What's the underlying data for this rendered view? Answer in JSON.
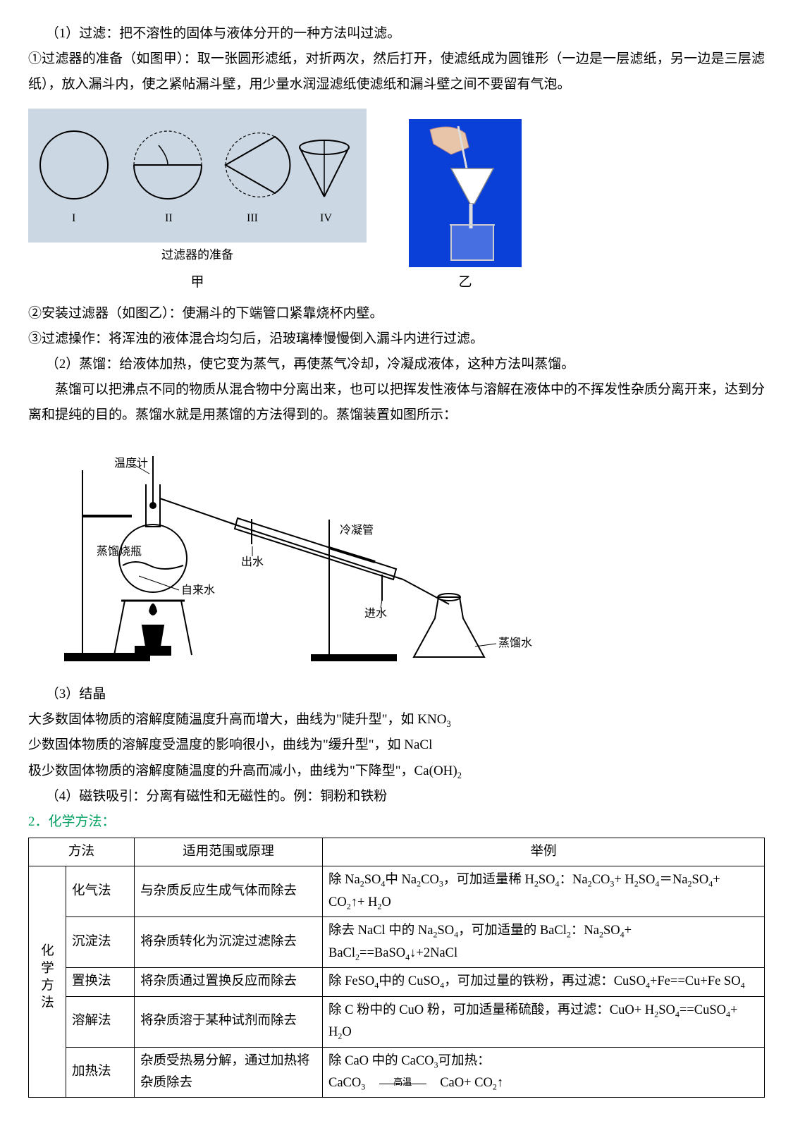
{
  "p1": "（1）过滤：把不溶性的固体与液体分开的一种方法叫过滤。",
  "p2": "①过滤器的准备（如图甲）：取一张圆形滤纸，对折两次，然后打开，使滤纸成为圆锥形（一边是一层滤纸，另一边是三层滤纸），放入漏斗内，使之紧帖漏斗壁，用少量水润湿滤纸使滤纸和漏斗壁之间不要留有气泡。",
  "fig": {
    "labels": [
      "I",
      "II",
      "III",
      "IV"
    ],
    "prep_caption": "过滤器的准备",
    "cap_a": "甲",
    "cap_b": "乙",
    "stroke": "#000000",
    "bg_a": "#cbd7e3",
    "bg_b": "#0a3fd8"
  },
  "p3": "②安装过滤器（如图乙）：使漏斗的下端管口紧靠烧杯内壁。",
  "p4": "③过滤操作：将浑浊的液体混合均匀后，沿玻璃棒慢慢倒入漏斗内进行过滤。",
  "p5": "（2）蒸馏：给液体加热，使它变为蒸气，再使蒸气冷却，冷凝成液体，这种方法叫蒸馏。",
  "p6": "蒸馏可以把沸点不同的物质从混合物中分离出来，也可以把挥发性液体与溶解在液体中的不挥发性杂质分离开来，达到分离和提纯的目的。蒸馏水就是用蒸馏的方法得到的。蒸馏装置如图所示：",
  "distill": {
    "thermo": "温度计",
    "flask": "蒸馏烧瓶",
    "tap": "自来水",
    "out": "出水",
    "cond": "冷凝管",
    "in": "进水",
    "product": "蒸馏水"
  },
  "p7": "（3）结晶",
  "p8_a": "大多数固体物质的溶解度随温度升高而增大，曲线为\"陡升型\"，如 KNO",
  "p8_b": "3",
  "p9": "少数固体物质的溶解度受温度的影响很小，曲线为\"缓升型\"，如 NaCl",
  "p10_a": "极少数固体物质的溶解度随温度的升高而减小，曲线为\"下降型\"，Ca(OH)",
  "p10_b": "2",
  "p11": "（4）磁铁吸引：分离有磁性和无磁性的。例：铜粉和铁粉",
  "sec2": "2．化学方法：",
  "table": {
    "h1": "方法",
    "h2": "适用范围或原理",
    "h3": "举例",
    "group": "化学方法",
    "rows": [
      {
        "name": "化气法",
        "scope": "与杂质反应生成气体而除去",
        "ex_html": "除 Na<span class='sub'>2</span>SO<span class='sub'>4</span>中 Na<span class='sub'>2</span>CO<span class='sub'>3</span>，可加适量稀 H<span class='sub'>2</span>SO<span class='sub'>4</span>：Na<span class='sub'>2</span>CO<span class='sub'>3</span>+ H<span class='sub'>2</span>SO<span class='sub'>4</span>＝Na<span class='sub'>2</span>SO<span class='sub'>4</span>+ CO<span class='sub'>2</span>↑+ H<span class='sub'>2</span>O"
      },
      {
        "name": "沉淀法",
        "scope": "将杂质转化为沉淀过滤除去",
        "ex_html": "除去 NaCl 中的 Na<span class='sub'>2</span>SO<span class='sub'>4</span>，可加适量的 BaCl<span class='sub'>2</span>：Na<span class='sub'>2</span>SO<span class='sub'>4</span>+ BaCl<span class='sub'>2</span>==BaSO<span class='sub'>4</span>↓+2NaCl"
      },
      {
        "name": "置换法",
        "scope": "将杂质通过置换反应而除去",
        "ex_html": "除 FeSO<span class='sub'>4</span>中的 CuSO<span class='sub'>4</span>，可加过量的铁粉，再过滤：CuSO<span class='sub'>4</span>+Fe==Cu+Fe SO<span class='sub'>4</span>"
      },
      {
        "name": "溶解法",
        "scope": "将杂质溶于某种试剂而除去",
        "ex_html": "除 C 粉中的 CuO 粉，可加适量稀硫酸，再过滤：CuO+ H<span class='sub'>2</span>SO<span class='sub'>4</span>==CuSO<span class='sub'>4</span>+ H<span class='sub'>2</span>O"
      },
      {
        "name": "加热法",
        "scope": "杂质受热易分解，通过加热将杂质除去",
        "ex_html": "除 CaO 中的 CaCO<span class='sub'>3</span>可加热：<br>CaCO<span class='sub'>3</span>　<span class='eq-wrap'>　<span class='eq-sub'>高温</span>　</span>　CaO+ CO<span class='sub'>2</span>↑"
      }
    ]
  }
}
